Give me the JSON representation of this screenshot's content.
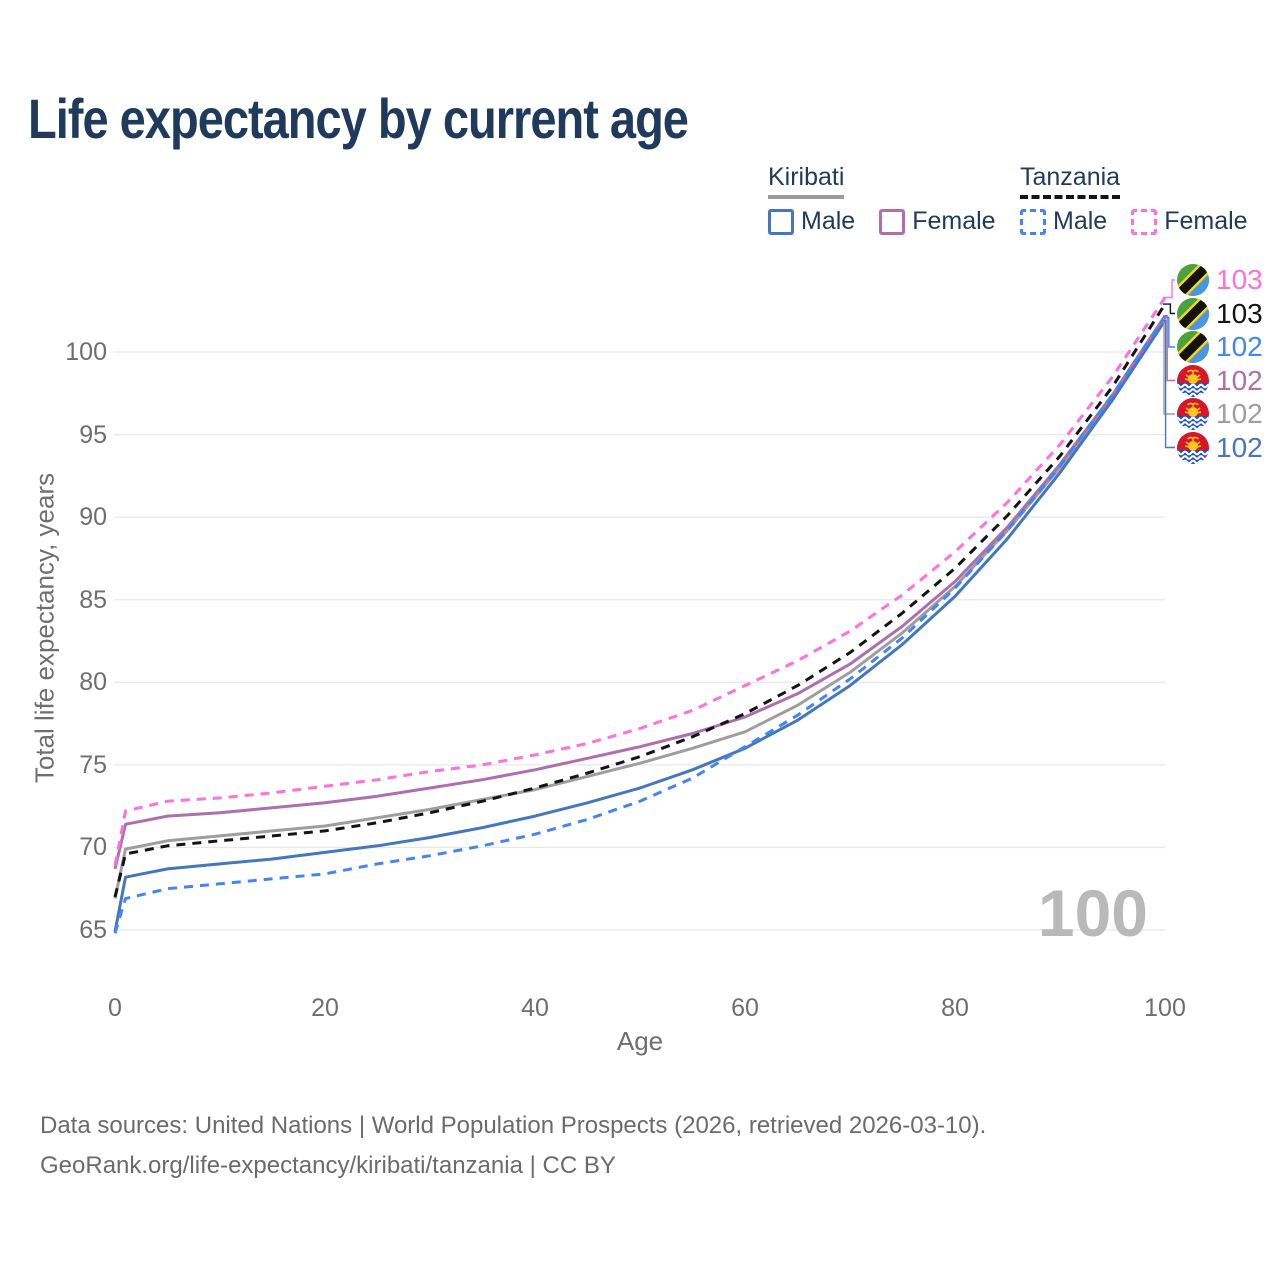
{
  "header": {
    "title": "Life expectancy by current age"
  },
  "legend": {
    "groups": [
      {
        "id": "kiribati",
        "label": "Kiribati",
        "line_style": "solid",
        "line_color": "#9a9a9a",
        "items": [
          {
            "label": "Male",
            "color": "#4477bd",
            "dash": false
          },
          {
            "label": "Female",
            "color": "#ad6fad",
            "dash": false
          }
        ]
      },
      {
        "id": "tanzania",
        "label": "Tanzania",
        "line_style": "dashed",
        "line_color": "#141414",
        "items": [
          {
            "label": "Male",
            "color": "#4285f4",
            "dash": true
          },
          {
            "label": "Female",
            "color": "#ff70d9",
            "dash": true
          }
        ]
      }
    ]
  },
  "chart_data": {
    "type": "line",
    "title": "Life expectancy by current age",
    "xlabel": "Age",
    "ylabel": "Total life expectancy, years",
    "x_ticks": [
      0,
      20,
      40,
      60,
      80,
      100
    ],
    "y_ticks": [
      65,
      70,
      75,
      80,
      85,
      90,
      95,
      100
    ],
    "xlim": [
      0,
      100
    ],
    "ylim": [
      65,
      103.5
    ],
    "grid": "horizontal-only",
    "legend_position": "top-right",
    "hover_age_watermark": "100",
    "ages": [
      0,
      1,
      5,
      10,
      15,
      20,
      25,
      30,
      35,
      40,
      45,
      50,
      55,
      60,
      65,
      70,
      75,
      80,
      85,
      90,
      95,
      100
    ],
    "series": [
      {
        "id": "kiribati-total",
        "country": "Kiribati",
        "sex": "Total",
        "color": "#9e9e9e",
        "dash": false,
        "flag": "ki",
        "end_label": "102",
        "label_row": 4,
        "values": [
          66.9,
          69.9,
          70.4,
          70.7,
          71.0,
          71.3,
          71.8,
          72.3,
          72.9,
          73.5,
          74.3,
          75.1,
          76.0,
          77.0,
          78.6,
          80.6,
          83.0,
          85.8,
          89.2,
          93.0,
          97.2,
          102.0
        ]
      },
      {
        "id": "kiribati-male",
        "country": "Kiribati",
        "sex": "Male",
        "color": "#4477bd",
        "dash": false,
        "flag": "ki",
        "end_label": "102",
        "label_row": 5,
        "values": [
          64.9,
          68.2,
          68.7,
          69.0,
          69.3,
          69.7,
          70.1,
          70.6,
          71.2,
          71.9,
          72.7,
          73.6,
          74.7,
          76.0,
          77.7,
          79.8,
          82.3,
          85.2,
          88.7,
          92.7,
          97.1,
          101.9
        ]
      },
      {
        "id": "kiribati-female",
        "country": "Kiribati",
        "sex": "Female",
        "color": "#ad6fad",
        "dash": false,
        "flag": "ki",
        "end_label": "102",
        "label_row": 3,
        "values": [
          68.7,
          71.4,
          71.9,
          72.1,
          72.4,
          72.7,
          73.1,
          73.6,
          74.1,
          74.7,
          75.4,
          76.1,
          76.9,
          77.9,
          79.3,
          81.1,
          83.4,
          86.1,
          89.4,
          93.2,
          97.4,
          102.2
        ]
      },
      {
        "id": "tanzania-male",
        "country": "Tanzania",
        "sex": "Male",
        "color": "#4285f4",
        "dash": true,
        "flag": "tz",
        "end_label": "102",
        "label_row": 2,
        "values": [
          64.8,
          66.9,
          67.5,
          67.8,
          68.1,
          68.4,
          69.0,
          69.5,
          70.1,
          70.8,
          71.7,
          72.8,
          74.2,
          76.1,
          78.0,
          80.2,
          82.7,
          85.7,
          89.2,
          93.1,
          97.4,
          102.1
        ]
      },
      {
        "id": "tanzania-total",
        "country": "Tanzania",
        "sex": "Total",
        "color": "#141414",
        "dash": true,
        "flag": "tz",
        "end_label": "103",
        "label_row": 1,
        "values": [
          67.0,
          69.6,
          70.1,
          70.4,
          70.7,
          71.0,
          71.5,
          72.1,
          72.8,
          73.6,
          74.5,
          75.5,
          76.7,
          78.1,
          79.8,
          81.8,
          84.2,
          86.9,
          90.1,
          93.7,
          97.9,
          102.9
        ]
      },
      {
        "id": "tanzania-female",
        "country": "Tanzania",
        "sex": "Female",
        "color": "#ff70d9",
        "dash": true,
        "flag": "tz",
        "end_label": "103",
        "label_row": 0,
        "values": [
          68.9,
          72.2,
          72.8,
          73.0,
          73.3,
          73.7,
          74.1,
          74.6,
          75.0,
          75.6,
          76.3,
          77.2,
          78.3,
          79.8,
          81.3,
          83.1,
          85.3,
          87.9,
          90.9,
          94.4,
          98.5,
          103.3
        ]
      }
    ]
  },
  "footer": {
    "line1": "Data sources: United Nations | World Population Prospects (2026, retrieved 2026-03-10).",
    "line2": "GeoRank.org/life-expectancy/kiribati/tanzania | CC BY"
  }
}
